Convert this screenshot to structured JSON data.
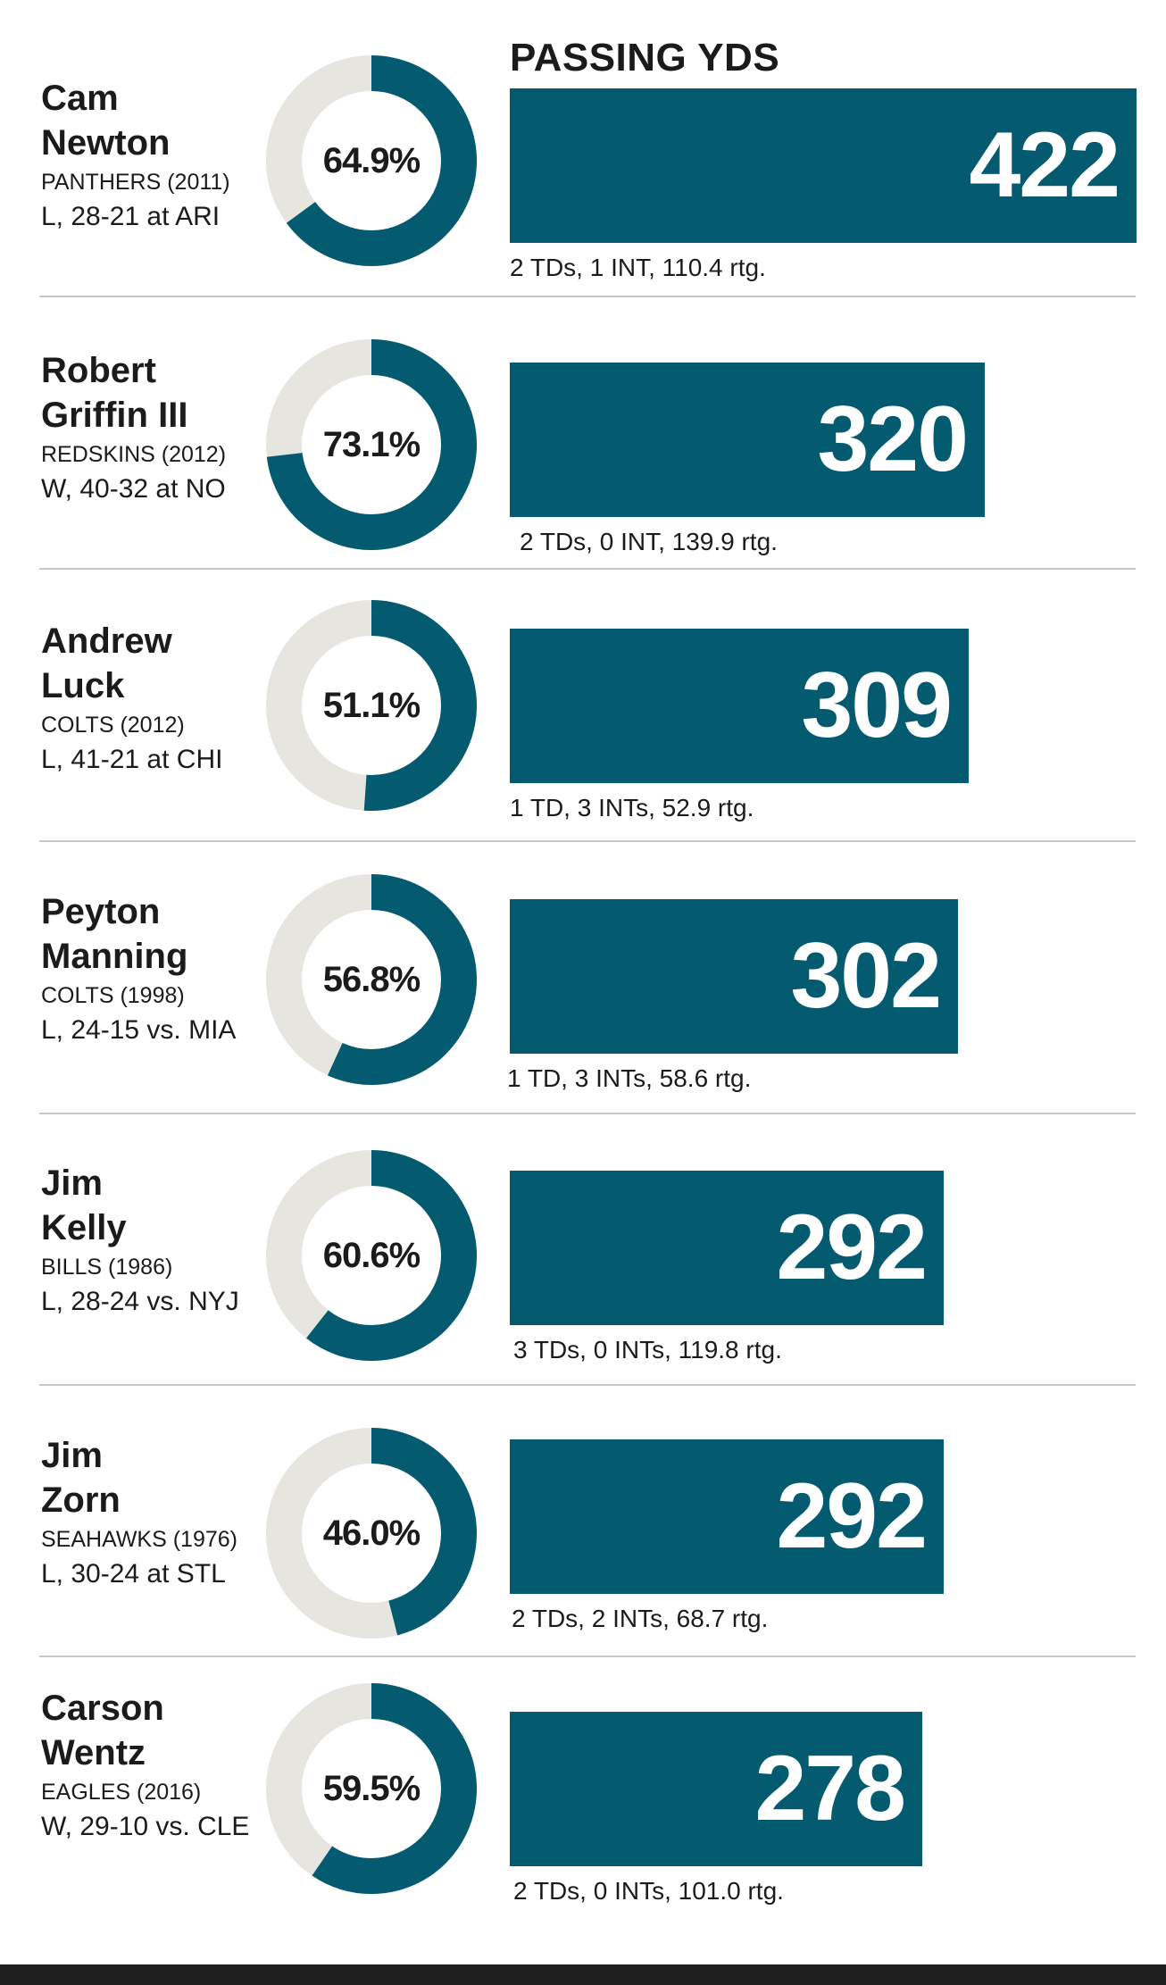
{
  "header": {
    "title": "PASSING YDS"
  },
  "colors": {
    "bar": "#045a6f",
    "ring_track": "#e6e5e0",
    "ring_fill": "#045a6f"
  },
  "chart_data": {
    "type": "bar",
    "title": "PASSING YDS",
    "xlabel": "",
    "ylabel": "",
    "xlim": [
      0,
      422
    ],
    "players": [
      {
        "first": "Cam",
        "last": "Newton",
        "team": "PANTHERS (2011)",
        "result": "L, 28-21 at ARI",
        "pct_label": "64.9%",
        "pct": 64.9,
        "yards_label": "422",
        "yards": 422,
        "stats": "2 TDs, 1 INT,  110.4 rtg."
      },
      {
        "first": "Robert",
        "last": "Griffin III",
        "team": "REDSKINS (2012)",
        "result": "W, 40-32 at NO",
        "pct_label": "73.1%",
        "pct": 73.1,
        "yards_label": "320",
        "yards": 320,
        "stats": "2 TDs, 0 INT,  139.9 rtg."
      },
      {
        "first": "Andrew",
        "last": "Luck",
        "team": "COLTS (2012)",
        "result": "L, 41-21 at CHI",
        "pct_label": "51.1%",
        "pct": 51.1,
        "yards_label": "309",
        "yards": 309,
        "stats": "1 TD, 3 INTs,  52.9 rtg."
      },
      {
        "first": "Peyton",
        "last": "Manning",
        "team": "COLTS (1998)",
        "result": "L, 24-15 vs. MIA",
        "pct_label": "56.8%",
        "pct": 56.8,
        "yards_label": "302",
        "yards": 302,
        "stats": "1 TD, 3 INTs,  58.6 rtg."
      },
      {
        "first": "Jim",
        "last": "Kelly",
        "team": "BILLS (1986)",
        "result": "L, 28-24 vs. NYJ",
        "pct_label": "60.6%",
        "pct": 60.6,
        "yards_label": "292",
        "yards": 292,
        "stats": "3 TDs, 0 INTs,  119.8 rtg."
      },
      {
        "first": "Jim",
        "last": "Zorn",
        "team": "SEAHAWKS (1976)",
        "result": "L, 30-24 at STL",
        "pct_label": "46.0%",
        "pct": 46.0,
        "yards_label": "292",
        "yards": 292,
        "stats": "2 TDs, 2 INTs,  68.7 rtg."
      },
      {
        "first": "Carson",
        "last": "Wentz",
        "team": "EAGLES (2016)",
        "result": "W, 29-10 vs. CLE",
        "pct_label": "59.5%",
        "pct": 59.5,
        "yards_label": "278",
        "yards": 278,
        "stats": "2 TDs, 0 INTs,  101.0 rtg."
      }
    ]
  }
}
